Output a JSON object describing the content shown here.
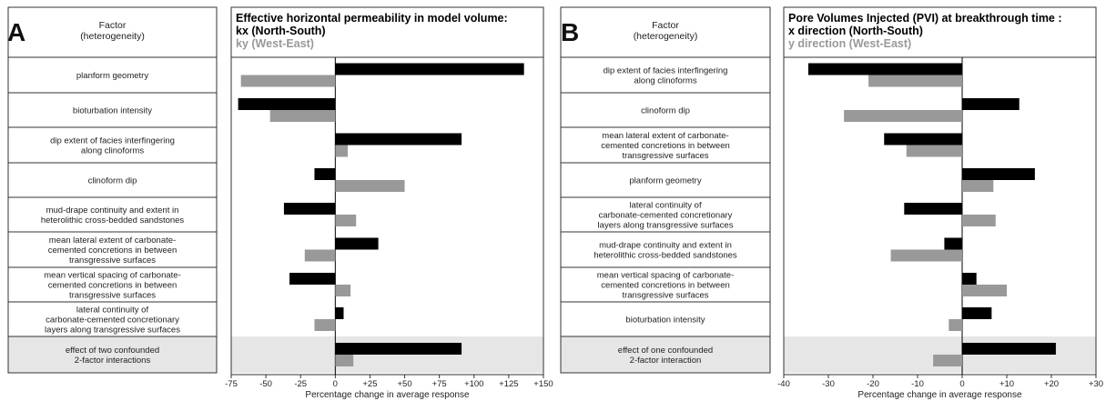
{
  "colors": {
    "x_series": "#000000",
    "y_series": "#999999",
    "shade": "#e6e6e6",
    "grid": "#333333"
  },
  "chart_data": [
    {
      "panel_letter": "A",
      "type": "bar",
      "orientation": "horizontal",
      "factor_header": [
        "Factor",
        "(heterogeneity)"
      ],
      "title_lines": [
        "Effective horizontal permeability in model volume:",
        "kx (North-South)"
      ],
      "subtitle": "ky (West-East)",
      "xlabel": "Percentage change in average response",
      "xlim": [
        -75,
        150
      ],
      "ticks": [
        -75,
        -50,
        -25,
        0,
        25,
        50,
        75,
        100,
        125,
        150
      ],
      "tick_labels": [
        "-75",
        "-50",
        "-25",
        "0",
        "+25",
        "+50",
        "+75",
        "+100",
        "+125",
        "+150"
      ],
      "categories": [
        [
          "planform geometry"
        ],
        [
          "bioturbation intensity"
        ],
        [
          "dip extent of facies interfingering",
          "along clinoforms"
        ],
        [
          "clinoform dip"
        ],
        [
          "mud-drape continuity and extent in",
          "heterolithic cross-bedded sandstones"
        ],
        [
          "mean lateral extent of carbonate-",
          "cemented concretions in between",
          "transgressive surfaces"
        ],
        [
          "mean vertical spacing of carbonate-",
          "cemented concretions in between",
          "transgressive surfaces"
        ],
        [
          "lateral continuity of",
          "carbonate-cemented concretionary",
          "layers along transgressive surfaces"
        ],
        [
          "effect of two confounded",
          "2-factor interactions"
        ]
      ],
      "shaded_last": true,
      "series": [
        {
          "name": "kx (North-South)",
          "values": [
            136,
            -70,
            91,
            -15,
            -37,
            31,
            -33,
            6,
            91
          ]
        },
        {
          "name": "ky (West-East)",
          "values": [
            -68,
            -47,
            9,
            50,
            15,
            -22,
            11,
            -15,
            13
          ]
        }
      ]
    },
    {
      "panel_letter": "B",
      "type": "bar",
      "orientation": "horizontal",
      "factor_header": [
        "Factor",
        "(heterogeneity)"
      ],
      "title_lines": [
        "Pore Volumes Injected (PVI) at breakthrough time :",
        "x direction (North-South)"
      ],
      "subtitle": "y direction (West-East)",
      "xlabel": "Percentage change in average response",
      "xlim": [
        -40,
        30
      ],
      "ticks": [
        -40,
        -30,
        -20,
        -10,
        0,
        10,
        20,
        30
      ],
      "tick_labels": [
        "-40",
        "-30",
        "-20",
        "-10",
        "0",
        "+10",
        "+20",
        "+30"
      ],
      "categories": [
        [
          "dip extent of facies interfingering",
          "along clinoforms"
        ],
        [
          "clinoform dip"
        ],
        [
          "mean lateral extent of carbonate-",
          "cemented concretions in between",
          "transgressive surfaces"
        ],
        [
          "planform geometry"
        ],
        [
          "lateral continuity of",
          "carbonate-cemented concretionary",
          "layers along transgressive surfaces"
        ],
        [
          "mud-drape continuity and extent in",
          "heterolithic cross-bedded sandstones"
        ],
        [
          "mean vertical spacing of carbonate-",
          "cemented concretions in between",
          "transgressive surfaces"
        ],
        [
          "bioturbation intensity"
        ],
        [
          "effect of one confounded",
          "2-factor interaction"
        ]
      ],
      "shaded_last": true,
      "series": [
        {
          "name": "x direction (North-South)",
          "values": [
            -34.5,
            12.8,
            -17.5,
            16.3,
            -13,
            -4,
            3.2,
            6.6,
            21
          ]
        },
        {
          "name": "y direction (West-East)",
          "values": [
            -21,
            -26.5,
            -12.5,
            7,
            7.5,
            -16,
            10,
            -3,
            -6.5
          ]
        }
      ]
    }
  ]
}
